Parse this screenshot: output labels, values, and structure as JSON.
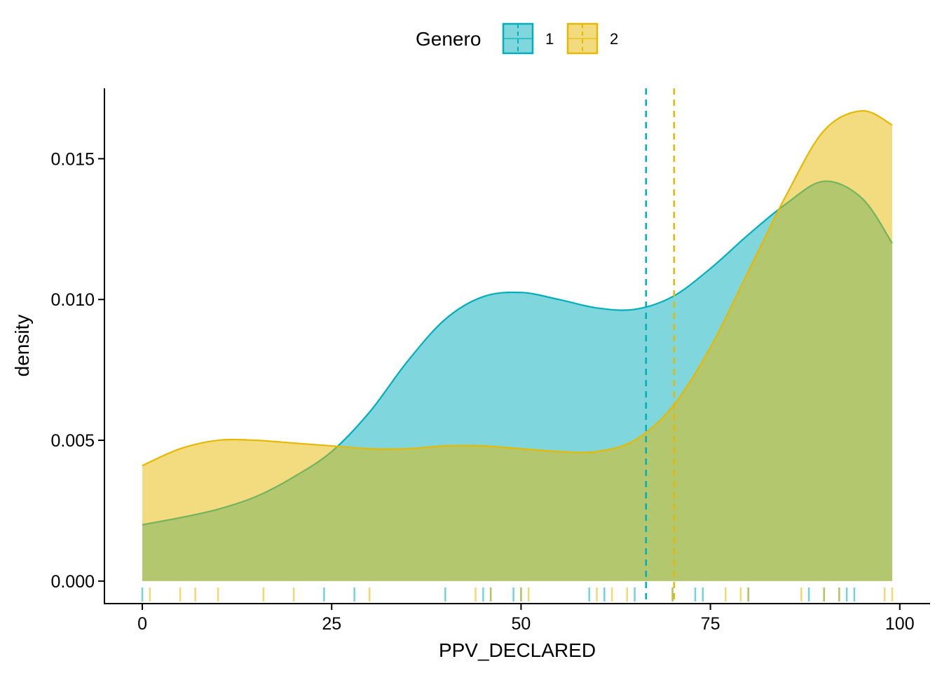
{
  "chart_data": {
    "type": "area",
    "subtype": "density-with-rug-and-mean-lines",
    "xlabel": "PPV_DECLARED",
    "ylabel": "density",
    "xlim": [
      -5,
      104
    ],
    "ylim": [
      -0.0008,
      0.0175
    ],
    "x_ticks": [
      0,
      25,
      50,
      75,
      100
    ],
    "y_ticks": [
      0.0,
      0.005,
      0.01,
      0.015
    ],
    "y_tick_labels": [
      "0.000",
      "0.005",
      "0.010",
      "0.015"
    ],
    "grid": false,
    "legend": {
      "title": "Genero",
      "position": "top"
    },
    "colors": {
      "overlap": "#b1c86e"
    },
    "series": [
      {
        "name": "1",
        "color": "#00AFBB",
        "fill": "#7fd7dd",
        "mean": 66.5,
        "density": {
          "x": [
            0,
            5,
            10,
            15,
            20,
            25,
            30,
            35,
            40,
            45,
            50,
            55,
            60,
            65,
            70,
            75,
            80,
            85,
            90,
            95,
            99
          ],
          "y": [
            0.002,
            0.00225,
            0.00255,
            0.003,
            0.0037,
            0.0046,
            0.006,
            0.0078,
            0.0093,
            0.0101,
            0.01025,
            0.01,
            0.0097,
            0.00965,
            0.0101,
            0.0111,
            0.0123,
            0.0134,
            0.0142,
            0.0136,
            0.012
          ]
        },
        "rug": [
          0,
          24,
          28,
          40,
          45,
          46,
          49,
          50,
          59,
          61,
          65,
          70,
          73,
          74,
          80,
          88,
          90,
          92,
          93,
          94
        ]
      },
      {
        "name": "2",
        "color": "#E7B800",
        "fill": "#f2db7f",
        "mean": 70.2,
        "density": {
          "x": [
            0,
            5,
            10,
            15,
            20,
            25,
            30,
            35,
            40,
            45,
            50,
            55,
            60,
            65,
            70,
            75,
            80,
            85,
            90,
            95,
            99
          ],
          "y": [
            0.0041,
            0.0047,
            0.005,
            0.005,
            0.0049,
            0.0048,
            0.0047,
            0.0047,
            0.0048,
            0.0048,
            0.0047,
            0.0046,
            0.0046,
            0.005,
            0.0062,
            0.0083,
            0.011,
            0.0137,
            0.016,
            0.0167,
            0.0162
          ]
        },
        "rug": [
          1,
          5,
          7,
          10,
          16,
          20,
          30,
          44,
          46,
          50,
          51,
          60,
          62,
          64,
          70,
          77,
          79,
          80,
          87,
          90,
          92,
          98,
          99
        ]
      }
    ]
  }
}
